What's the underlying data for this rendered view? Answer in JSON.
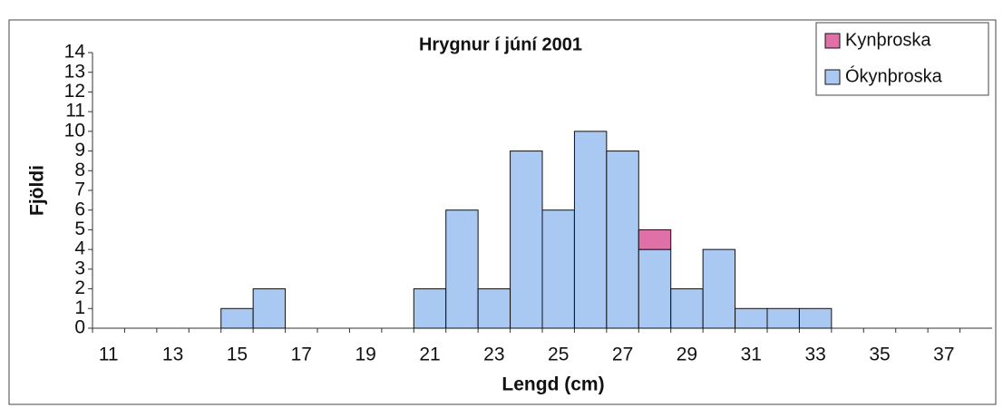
{
  "chart_data": {
    "type": "stacked_bar",
    "title": "Hrygnur í júní 2001",
    "x_label": "Lengd (cm)",
    "y_label": "Fjöldi",
    "categories": [
      "11",
      null,
      "13",
      null,
      "15",
      null,
      "17",
      null,
      "19",
      null,
      "21",
      null,
      "23",
      null,
      "25",
      null,
      "27",
      null,
      "29",
      null,
      "31",
      null,
      "33",
      null,
      "35",
      null,
      "37",
      null
    ],
    "series": [
      {
        "name": "Ókynþroska",
        "color": "#a9c8f2",
        "values": [
          0,
          0,
          0,
          0,
          1,
          2,
          0,
          0,
          0,
          0,
          2,
          6,
          2,
          9,
          6,
          10,
          9,
          4,
          2,
          4,
          1,
          1,
          1,
          0,
          0,
          0,
          0,
          0
        ]
      },
      {
        "name": "Kynþroska",
        "color": "#e070a8",
        "values": [
          0,
          0,
          0,
          0,
          0,
          0,
          0,
          0,
          0,
          0,
          0,
          0,
          0,
          0,
          0,
          0,
          0,
          1,
          0,
          0,
          0,
          0,
          0,
          0,
          0,
          0,
          0,
          0
        ]
      }
    ],
    "ylim": [
      0,
      14
    ],
    "yticks": [
      0,
      1,
      2,
      3,
      4,
      5,
      6,
      7,
      8,
      9,
      10,
      11,
      12,
      13,
      14
    ],
    "grid": false,
    "legend": "top-right"
  }
}
